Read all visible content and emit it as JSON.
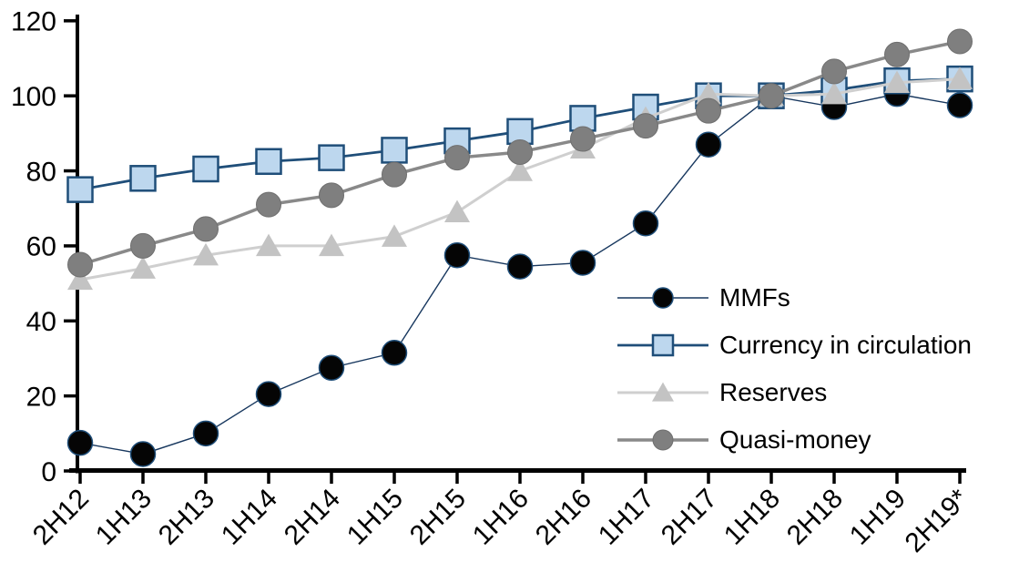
{
  "chart_data": {
    "type": "line",
    "title": "",
    "xlabel": "",
    "ylabel": "",
    "categories": [
      "2H12",
      "1H13",
      "2H13",
      "1H14",
      "2H14",
      "1H15",
      "2H15",
      "1H16",
      "2H16",
      "1H17",
      "2H17",
      "1H18",
      "2H18",
      "1H19",
      "2H19*"
    ],
    "series": [
      {
        "name": "MMFs",
        "marker": "circle",
        "line_color": "#17375e",
        "marker_fill": "#050505",
        "marker_edge": "#1f4e79",
        "marker_edge_width": 1.5,
        "line_width": 1.4,
        "values": [
          7.5,
          4.5,
          10,
          20.5,
          27.5,
          31.5,
          57.5,
          54.5,
          55.5,
          66,
          87,
          100,
          97,
          100.5,
          97.5
        ]
      },
      {
        "name": "Currency in circulation",
        "marker": "square",
        "line_color": "#1f4e79",
        "marker_fill": "#bdd7ee",
        "marker_edge": "#1f4e79",
        "marker_edge_width": 2.5,
        "line_width": 2.8,
        "values": [
          75,
          78,
          80.5,
          82.5,
          83.5,
          85.5,
          88,
          90.5,
          94,
          97,
          100,
          100,
          101.5,
          104,
          104.5
        ]
      },
      {
        "name": "Reserves",
        "marker": "triangle",
        "line_color": "#cfcfcf",
        "marker_fill": "#c3c3c3",
        "marker_edge": "none",
        "marker_edge_width": 0,
        "line_width": 3,
        "values": [
          51,
          54,
          57.5,
          60,
          60,
          62.5,
          69,
          80,
          86,
          94,
          100.5,
          100,
          100.5,
          103.5,
          104.5
        ]
      },
      {
        "name": "Quasi-money",
        "marker": "circle",
        "line_color": "#898989",
        "marker_fill": "#7f7f7f",
        "marker_edge": "#6f6f6f",
        "marker_edge_width": 1,
        "line_width": 3.5,
        "values": [
          55,
          60,
          64.5,
          71,
          73.5,
          79,
          83.5,
          85,
          88.5,
          92,
          96,
          100,
          106.5,
          111,
          114.5
        ]
      }
    ],
    "y_ticks": [
      0,
      20,
      40,
      60,
      80,
      100,
      120
    ],
    "ylim": [
      0,
      120
    ],
    "axis_color": "#000000",
    "grid": false,
    "legend_position": "inside-right"
  }
}
